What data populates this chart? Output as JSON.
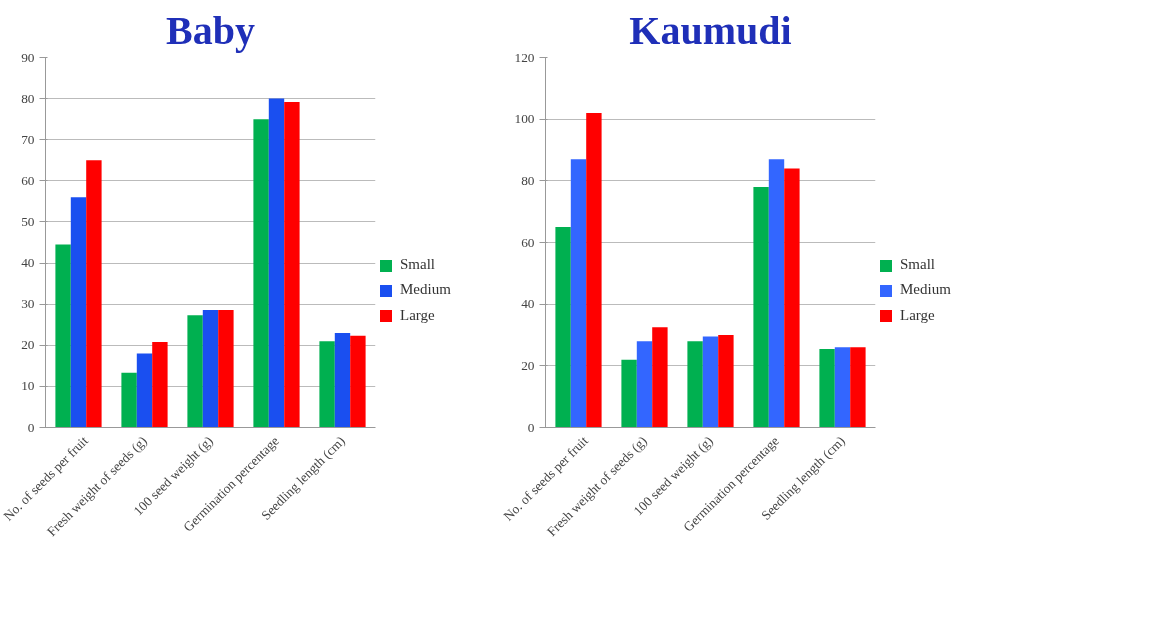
{
  "chart_data": [
    {
      "type": "bar",
      "title": "Baby",
      "categories": [
        "No. of seeds per fruit",
        "Fresh weight of seeds (g)",
        "100 seed weight (g)",
        "Germination percentage",
        "Seedling length (cm)"
      ],
      "series": [
        {
          "name": "Small",
          "color": "#00b050",
          "values": [
            44.5,
            13.3,
            27.3,
            75,
            21
          ]
        },
        {
          "name": "Medium",
          "color": "#1a4ff0",
          "values": [
            56,
            18,
            28.6,
            80,
            23
          ]
        },
        {
          "name": "Large",
          "color": "#ff0000",
          "values": [
            65,
            20.8,
            28.6,
            79.2,
            22.3
          ]
        }
      ],
      "ylim": [
        0,
        90
      ],
      "yticks": [
        0,
        10,
        20,
        30,
        40,
        50,
        60,
        70,
        80,
        90
      ],
      "grid": "y",
      "legend": "right"
    },
    {
      "type": "bar",
      "title": "Kaumudi",
      "categories": [
        "No. of seeds per fruit",
        "Fresh weight of seeds (g)",
        "100 seed weight (g)",
        "Germination percentage",
        "Seedling length (cm)"
      ],
      "series": [
        {
          "name": "Small",
          "color": "#00b050",
          "values": [
            65,
            22,
            28,
            78,
            25.5
          ]
        },
        {
          "name": "Medium",
          "color": "#3366ff",
          "values": [
            87,
            28,
            29.5,
            87,
            26
          ]
        },
        {
          "name": "Large",
          "color": "#ff0000",
          "values": [
            102,
            32.5,
            30,
            84,
            26
          ]
        }
      ],
      "ylim": [
        0,
        120
      ],
      "yticks": [
        0,
        20,
        40,
        60,
        80,
        100,
        120
      ],
      "grid": "y",
      "legend": "right"
    }
  ]
}
